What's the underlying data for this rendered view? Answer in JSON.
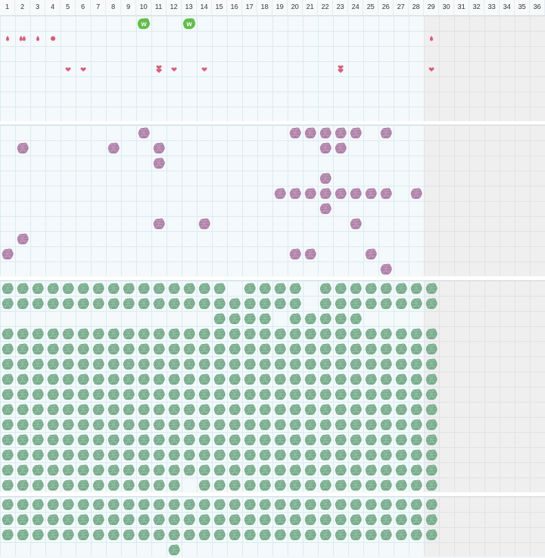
{
  "columns": [
    "1",
    "2",
    "3",
    "4",
    "5",
    "6",
    "7",
    "8",
    "9",
    "10",
    "11",
    "12",
    "13",
    "14",
    "15",
    "16",
    "17",
    "18",
    "19",
    "20",
    "21",
    "22",
    "23",
    "24",
    "25",
    "26",
    "27",
    "28",
    "29",
    "30",
    "31",
    "32",
    "33",
    "34",
    "35",
    "36"
  ],
  "shaded_from_column": 29,
  "colors": {
    "pink": "#e05a78",
    "purple": "#b07fa8",
    "green": "#76ad8a",
    "badge_green": "#5fbf46",
    "grid_line": "#d8eaef",
    "shaded_bg": "#efefef"
  },
  "badge_text": "W",
  "icons": {
    "drop": "drop-icon",
    "heart": "heart-icon",
    "dot": "dot-icon",
    "badge": "w-badge-icon",
    "purple_tile": "purple-tile-icon",
    "green_tile": "green-tile-icon"
  },
  "sections": [
    {
      "name": "markers",
      "rows": 7,
      "items": [
        {
          "type": "badge",
          "row": 0,
          "col": 10
        },
        {
          "type": "badge",
          "row": 0,
          "col": 13
        },
        {
          "type": "drop",
          "row": 1,
          "col": 1
        },
        {
          "type": "drop2",
          "row": 1,
          "col": 2
        },
        {
          "type": "drop",
          "row": 1,
          "col": 3
        },
        {
          "type": "dot",
          "row": 1,
          "col": 4
        },
        {
          "type": "drop",
          "row": 1,
          "col": 29
        },
        {
          "type": "heart",
          "row": 3,
          "col": 5
        },
        {
          "type": "heart",
          "row": 3,
          "col": 6
        },
        {
          "type": "heart2",
          "row": 3,
          "col": 11
        },
        {
          "type": "heart",
          "row": 3,
          "col": 12
        },
        {
          "type": "heart",
          "row": 3,
          "col": 14
        },
        {
          "type": "heart2",
          "row": 3,
          "col": 23
        },
        {
          "type": "heart",
          "row": 3,
          "col": 29
        }
      ]
    },
    {
      "name": "purple",
      "rows": 10,
      "cells": [
        [
          0,
          10
        ],
        [
          0,
          20
        ],
        [
          0,
          21
        ],
        [
          0,
          22
        ],
        [
          0,
          23
        ],
        [
          0,
          24
        ],
        [
          0,
          26
        ],
        [
          1,
          2
        ],
        [
          1,
          8
        ],
        [
          1,
          11
        ],
        [
          1,
          22
        ],
        [
          1,
          23
        ],
        [
          2,
          11
        ],
        [
          3,
          22
        ],
        [
          4,
          19
        ],
        [
          4,
          20
        ],
        [
          4,
          21
        ],
        [
          4,
          22
        ],
        [
          4,
          23
        ],
        [
          4,
          24
        ],
        [
          4,
          25
        ],
        [
          4,
          26
        ],
        [
          4,
          28
        ],
        [
          5,
          22
        ],
        [
          6,
          11
        ],
        [
          6,
          14
        ],
        [
          6,
          24
        ],
        [
          7,
          2
        ],
        [
          8,
          1
        ],
        [
          8,
          20
        ],
        [
          8,
          21
        ],
        [
          8,
          25
        ],
        [
          9,
          26
        ]
      ]
    },
    {
      "name": "green-main",
      "rows": 14,
      "max_col": 29,
      "row_rules": [
        {
          "row": 0,
          "missing": [
            16,
            21
          ]
        },
        {
          "row": 1,
          "missing": [
            21
          ]
        },
        {
          "row": 2,
          "only": [
            15,
            16,
            17,
            18,
            20,
            21,
            22,
            23,
            24
          ]
        },
        {
          "row": 13,
          "missing": [
            13
          ]
        }
      ]
    },
    {
      "name": "green-bottom",
      "rows": 4,
      "max_col": 29,
      "row_rules": [
        {
          "row": 3,
          "only": [
            12
          ]
        }
      ]
    }
  ]
}
